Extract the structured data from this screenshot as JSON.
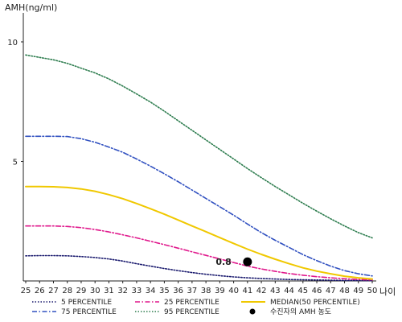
{
  "chart_data": {
    "type": "line",
    "ylabel": "AMH(ng/ml)",
    "xlabel": "나이",
    "xlim": [
      25,
      50
    ],
    "ylim": [
      0,
      11
    ],
    "x_ticks": [
      25,
      26,
      27,
      28,
      29,
      30,
      31,
      32,
      33,
      34,
      35,
      36,
      37,
      38,
      39,
      40,
      41,
      42,
      43,
      44,
      45,
      46,
      47,
      48,
      49,
      50
    ],
    "y_ticks": [
      5,
      10
    ],
    "x": [
      25,
      26,
      27,
      28,
      29,
      30,
      31,
      32,
      33,
      34,
      35,
      36,
      37,
      38,
      39,
      40,
      41,
      42,
      43,
      44,
      45,
      46,
      47,
      48,
      49,
      50
    ],
    "series": [
      {
        "name": "5 PERCENTILE",
        "color": "#1a1a6e",
        "style": "dotted",
        "values": [
          1.05,
          1.06,
          1.06,
          1.05,
          1.02,
          0.98,
          0.92,
          0.83,
          0.72,
          0.62,
          0.52,
          0.43,
          0.35,
          0.28,
          0.22,
          0.17,
          0.13,
          0.1,
          0.08,
          0.06,
          0.05,
          0.04,
          0.03,
          0.02,
          0.02,
          0.01
        ]
      },
      {
        "name": "25 PERCENTILE",
        "color": "#e0188c",
        "style": "dashdot",
        "values": [
          2.3,
          2.3,
          2.3,
          2.28,
          2.23,
          2.15,
          2.05,
          1.93,
          1.8,
          1.66,
          1.52,
          1.37,
          1.22,
          1.07,
          0.92,
          0.77,
          0.62,
          0.5,
          0.4,
          0.31,
          0.24,
          0.18,
          0.13,
          0.09,
          0.06,
          0.04
        ]
      },
      {
        "name": "MEDIAN(50 PERCENTILE)",
        "color": "#f0c800",
        "style": "solid",
        "values": [
          3.95,
          3.95,
          3.94,
          3.91,
          3.85,
          3.75,
          3.61,
          3.44,
          3.24,
          3.02,
          2.79,
          2.55,
          2.3,
          2.06,
          1.81,
          1.57,
          1.33,
          1.11,
          0.91,
          0.72,
          0.55,
          0.41,
          0.3,
          0.2,
          0.13,
          0.08
        ]
      },
      {
        "name": "75 PERCENTILE",
        "color": "#3050c0",
        "style": "dashdot",
        "values": [
          6.05,
          6.05,
          6.05,
          6.04,
          5.95,
          5.8,
          5.6,
          5.38,
          5.1,
          4.8,
          4.48,
          4.15,
          3.8,
          3.45,
          3.1,
          2.75,
          2.38,
          2.02,
          1.7,
          1.4,
          1.1,
          0.85,
          0.62,
          0.43,
          0.3,
          0.21
        ]
      },
      {
        "name": "95 PERCENTILE",
        "color": "#2e7d4f",
        "style": "dotted",
        "values": [
          9.45,
          9.35,
          9.25,
          9.1,
          8.9,
          8.7,
          8.45,
          8.15,
          7.82,
          7.48,
          7.1,
          6.7,
          6.3,
          5.9,
          5.5,
          5.1,
          4.7,
          4.32,
          3.95,
          3.6,
          3.25,
          2.92,
          2.6,
          2.3,
          2.02,
          1.8
        ]
      }
    ],
    "legend": {
      "placement": "bottom",
      "items": [
        {
          "label": "5 PERCENTILE",
          "series": 0
        },
        {
          "label": "25 PERCENTILE",
          "series": 1
        },
        {
          "label": "MEDIAN(50 PERCENTILE)",
          "series": 2
        },
        {
          "label": "75 PERCENTILE",
          "series": 3
        },
        {
          "label": "95 PERCENTILE",
          "series": 4
        },
        {
          "label": "수진자의 AMH 농도",
          "marker": "dot"
        }
      ]
    },
    "annotation": {
      "x": 41,
      "y": 0.8,
      "label": "0.8",
      "color": "#000000"
    },
    "grid": false
  }
}
